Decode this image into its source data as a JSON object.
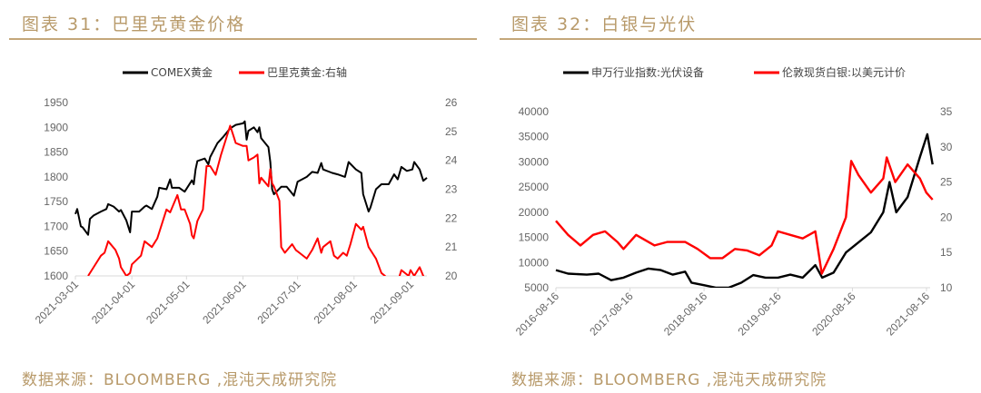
{
  "left": {
    "title": "图表 31：巴里克黄金价格",
    "source": "数据来源：BLOOMBERG ,混沌天成研究院"
  },
  "right": {
    "title": "图表 32：白银与光伏",
    "source": "数据来源：BLOOMBERG ,混沌天成研究院"
  },
  "chart_data": [
    {
      "type": "line",
      "title": "巴里克黄金价格",
      "xlim": [
        "2021-03-01",
        "2021-09-10"
      ],
      "x_ticks": [
        "2021-03-01",
        "2021-04-01",
        "2021-05-01",
        "2021-06-01",
        "2021-07-01",
        "2021-08-01",
        "2021-09-01"
      ],
      "ylim": [
        1600,
        1950
      ],
      "y_ticks": [
        "1600",
        "1650",
        "1700",
        "1750",
        "1800",
        "1850",
        "1900",
        "1950"
      ],
      "y2lim": [
        20,
        26
      ],
      "y2_ticks": [
        "20",
        "21",
        "22",
        "23",
        "24",
        "25",
        "26"
      ],
      "legend": "top",
      "series": [
        {
          "name": "COMEX黄金",
          "axis": "left",
          "color": "#000000",
          "points": [
            [
              "2021-03-01",
              1725
            ],
            [
              "2021-03-02",
              1735
            ],
            [
              "2021-03-04",
              1700
            ],
            [
              "2021-03-05",
              1698
            ],
            [
              "2021-03-08",
              1683
            ],
            [
              "2021-03-09",
              1715
            ],
            [
              "2021-03-11",
              1722
            ],
            [
              "2021-03-15",
              1730
            ],
            [
              "2021-03-18",
              1735
            ],
            [
              "2021-03-19",
              1745
            ],
            [
              "2021-03-22",
              1740
            ],
            [
              "2021-03-25",
              1730
            ],
            [
              "2021-03-26",
              1733
            ],
            [
              "2021-03-29",
              1712
            ],
            [
              "2021-03-31",
              1688
            ],
            [
              "2021-04-01",
              1730
            ],
            [
              "2021-04-05",
              1730
            ],
            [
              "2021-04-08",
              1740
            ],
            [
              "2021-04-09",
              1742
            ],
            [
              "2021-04-12",
              1735
            ],
            [
              "2021-04-15",
              1760
            ],
            [
              "2021-04-16",
              1778
            ],
            [
              "2021-04-20",
              1775
            ],
            [
              "2021-04-22",
              1795
            ],
            [
              "2021-04-23",
              1778
            ],
            [
              "2021-04-27",
              1778
            ],
            [
              "2021-04-30",
              1770
            ],
            [
              "2021-05-04",
              1793
            ],
            [
              "2021-05-05",
              1785
            ],
            [
              "2021-05-06",
              1815
            ],
            [
              "2021-05-07",
              1832
            ],
            [
              "2021-05-11",
              1837
            ],
            [
              "2021-05-13",
              1825
            ],
            [
              "2021-05-14",
              1840
            ],
            [
              "2021-05-18",
              1868
            ],
            [
              "2021-05-21",
              1880
            ],
            [
              "2021-05-25",
              1898
            ],
            [
              "2021-05-28",
              1905
            ],
            [
              "2021-06-01",
              1908
            ],
            [
              "2021-06-02",
              1912
            ],
            [
              "2021-06-03",
              1875
            ],
            [
              "2021-06-04",
              1893
            ],
            [
              "2021-06-07",
              1900
            ],
            [
              "2021-06-09",
              1890
            ],
            [
              "2021-06-10",
              1900
            ],
            [
              "2021-06-11",
              1878
            ],
            [
              "2021-06-15",
              1860
            ],
            [
              "2021-06-16",
              1830
            ],
            [
              "2021-06-17",
              1775
            ],
            [
              "2021-06-18",
              1765
            ],
            [
              "2021-06-22",
              1780
            ],
            [
              "2021-06-25",
              1780
            ],
            [
              "2021-06-29",
              1762
            ],
            [
              "2021-07-01",
              1790
            ],
            [
              "2021-07-06",
              1800
            ],
            [
              "2021-07-09",
              1810
            ],
            [
              "2021-07-12",
              1808
            ],
            [
              "2021-07-14",
              1828
            ],
            [
              "2021-07-15",
              1815
            ],
            [
              "2021-07-20",
              1808
            ],
            [
              "2021-07-23",
              1805
            ],
            [
              "2021-07-27",
              1800
            ],
            [
              "2021-07-29",
              1830
            ],
            [
              "2021-08-02",
              1815
            ],
            [
              "2021-08-05",
              1808
            ],
            [
              "2021-08-06",
              1765
            ],
            [
              "2021-08-09",
              1730
            ],
            [
              "2021-08-10",
              1738
            ],
            [
              "2021-08-13",
              1775
            ],
            [
              "2021-08-16",
              1785
            ],
            [
              "2021-08-20",
              1785
            ],
            [
              "2021-08-23",
              1805
            ],
            [
              "2021-08-25",
              1795
            ],
            [
              "2021-08-27",
              1820
            ],
            [
              "2021-08-30",
              1812
            ],
            [
              "2021-09-02",
              1815
            ],
            [
              "2021-09-03",
              1830
            ],
            [
              "2021-09-06",
              1815
            ],
            [
              "2021-09-08",
              1792
            ],
            [
              "2021-09-10",
              1798
            ]
          ]
        },
        {
          "name": "巴里克黄金:右轴",
          "axis": "right",
          "color": "#ff0000",
          "points": [
            [
              "2021-03-08",
              20.0
            ],
            [
              "2021-03-11",
              20.3
            ],
            [
              "2021-03-15",
              20.7
            ],
            [
              "2021-03-17",
              20.8
            ],
            [
              "2021-03-19",
              21.2
            ],
            [
              "2021-03-23",
              20.9
            ],
            [
              "2021-03-25",
              20.6
            ],
            [
              "2021-03-26",
              20.3
            ],
            [
              "2021-03-29",
              20.0
            ],
            [
              "2021-03-31",
              20.1
            ],
            [
              "2021-04-01",
              20.4
            ],
            [
              "2021-04-06",
              20.7
            ],
            [
              "2021-04-08",
              21.2
            ],
            [
              "2021-04-12",
              21.0
            ],
            [
              "2021-04-15",
              21.3
            ],
            [
              "2021-04-20",
              22.3
            ],
            [
              "2021-04-22",
              22.2
            ],
            [
              "2021-04-26",
              22.8
            ],
            [
              "2021-04-28",
              22.3
            ],
            [
              "2021-04-30",
              22.3
            ],
            [
              "2021-05-03",
              21.8
            ],
            [
              "2021-05-04",
              21.4
            ],
            [
              "2021-05-05",
              21.3
            ],
            [
              "2021-05-07",
              21.9
            ],
            [
              "2021-05-10",
              22.3
            ],
            [
              "2021-05-12",
              23.8
            ],
            [
              "2021-05-14",
              23.8
            ],
            [
              "2021-05-17",
              23.5
            ],
            [
              "2021-05-20",
              24.2
            ],
            [
              "2021-05-25",
              25.2
            ],
            [
              "2021-05-27",
              24.8
            ],
            [
              "2021-05-28",
              24.6
            ],
            [
              "2021-06-01",
              24.5
            ],
            [
              "2021-06-03",
              24.5
            ],
            [
              "2021-06-04",
              24.0
            ],
            [
              "2021-06-07",
              24.1
            ],
            [
              "2021-06-09",
              24.2
            ],
            [
              "2021-06-10",
              23.2
            ],
            [
              "2021-06-11",
              23.4
            ],
            [
              "2021-06-15",
              23.1
            ],
            [
              "2021-06-16",
              23.7
            ],
            [
              "2021-06-17",
              23.2
            ],
            [
              "2021-06-18",
              23.1
            ],
            [
              "2021-06-21",
              22.6
            ],
            [
              "2021-06-22",
              21.0
            ],
            [
              "2021-06-24",
              20.8
            ],
            [
              "2021-06-28",
              21.1
            ],
            [
              "2021-06-30",
              20.9
            ],
            [
              "2021-07-02",
              20.8
            ],
            [
              "2021-07-06",
              20.6
            ],
            [
              "2021-07-09",
              20.9
            ],
            [
              "2021-07-12",
              21.3
            ],
            [
              "2021-07-14",
              20.8
            ],
            [
              "2021-07-15",
              21.0
            ],
            [
              "2021-07-19",
              21.2
            ],
            [
              "2021-07-21",
              20.7
            ],
            [
              "2021-07-23",
              20.6
            ],
            [
              "2021-07-26",
              20.8
            ],
            [
              "2021-07-28",
              20.7
            ],
            [
              "2021-07-30",
              21.1
            ],
            [
              "2021-08-02",
              21.8
            ],
            [
              "2021-08-05",
              21.6
            ],
            [
              "2021-08-06",
              21.7
            ],
            [
              "2021-08-09",
              21.0
            ],
            [
              "2021-08-11",
              20.8
            ],
            [
              "2021-08-13",
              20.6
            ],
            [
              "2021-08-16",
              20.1
            ],
            [
              "2021-08-18",
              20.0
            ],
            [
              "2021-08-20",
              19.8
            ],
            [
              "2021-08-25",
              19.8
            ],
            [
              "2021-08-27",
              20.2
            ],
            [
              "2021-08-31",
              20.0
            ],
            [
              "2021-09-01",
              20.2
            ],
            [
              "2021-09-03",
              20.0
            ],
            [
              "2021-09-06",
              20.3
            ],
            [
              "2021-09-08",
              20.0
            ],
            [
              "2021-09-10",
              19.8
            ]
          ]
        }
      ]
    },
    {
      "type": "line",
      "title": "白银与光伏",
      "xlim": [
        "2016-08-16",
        "2021-09-20"
      ],
      "x_ticks": [
        "2016-08-16",
        "2017-08-16",
        "2018-08-16",
        "2019-08-16",
        "2020-08-16",
        "2021-08-16"
      ],
      "ylim": [
        5000,
        40000
      ],
      "y_ticks": [
        "5000",
        "10000",
        "15000",
        "20000",
        "25000",
        "30000",
        "35000",
        "40000"
      ],
      "y2lim": [
        10,
        35
      ],
      "y2_ticks": [
        "10",
        "15",
        "20",
        "25",
        "30",
        "35"
      ],
      "legend": "top",
      "series": [
        {
          "name": "申万行业指数:光伏设备",
          "axis": "left",
          "color": "#000000",
          "points": [
            [
              "2016-08-16",
              8500
            ],
            [
              "2016-10-15",
              7800
            ],
            [
              "2017-01-15",
              7600
            ],
            [
              "2017-03-15",
              7800
            ],
            [
              "2017-05-15",
              6500
            ],
            [
              "2017-07-15",
              7000
            ],
            [
              "2017-09-15",
              8000
            ],
            [
              "2017-11-15",
              8800
            ],
            [
              "2018-01-15",
              8500
            ],
            [
              "2018-03-15",
              7600
            ],
            [
              "2018-05-15",
              8200
            ],
            [
              "2018-06-15",
              6000
            ],
            [
              "2018-08-15",
              5500
            ],
            [
              "2018-10-15",
              5000
            ],
            [
              "2018-12-15",
              5000
            ],
            [
              "2019-02-15",
              6000
            ],
            [
              "2019-04-15",
              7500
            ],
            [
              "2019-06-15",
              7000
            ],
            [
              "2019-08-15",
              7000
            ],
            [
              "2019-10-15",
              7600
            ],
            [
              "2019-12-15",
              7000
            ],
            [
              "2020-02-15",
              9500
            ],
            [
              "2020-03-20",
              7000
            ],
            [
              "2020-05-15",
              8000
            ],
            [
              "2020-07-15",
              12000
            ],
            [
              "2020-09-15",
              14000
            ],
            [
              "2020-11-15",
              16000
            ],
            [
              "2021-01-15",
              20000
            ],
            [
              "2021-02-15",
              26000
            ],
            [
              "2021-03-20",
              20000
            ],
            [
              "2021-05-15",
              23000
            ],
            [
              "2021-07-15",
              31000
            ],
            [
              "2021-08-20",
              35500
            ],
            [
              "2021-09-15",
              29500
            ]
          ]
        },
        {
          "name": "伦敦现货白银:以美元计价",
          "axis": "right",
          "color": "#ff0000",
          "points": [
            [
              "2016-08-16",
              19.5
            ],
            [
              "2016-10-15",
              17.5
            ],
            [
              "2016-12-15",
              16
            ],
            [
              "2017-02-15",
              17.5
            ],
            [
              "2017-04-15",
              18
            ],
            [
              "2017-06-15",
              16.5
            ],
            [
              "2017-07-15",
              15.5
            ],
            [
              "2017-09-15",
              17.5
            ],
            [
              "2017-12-15",
              16
            ],
            [
              "2018-02-15",
              16.5
            ],
            [
              "2018-05-15",
              16.5
            ],
            [
              "2018-07-15",
              15.5
            ],
            [
              "2018-09-15",
              14.2
            ],
            [
              "2018-11-15",
              14.2
            ],
            [
              "2019-01-15",
              15.5
            ],
            [
              "2019-03-15",
              15.3
            ],
            [
              "2019-05-15",
              14.6
            ],
            [
              "2019-07-15",
              16
            ],
            [
              "2019-08-15",
              18
            ],
            [
              "2019-10-15",
              17.5
            ],
            [
              "2019-12-15",
              17
            ],
            [
              "2020-02-15",
              18
            ],
            [
              "2020-03-18",
              12
            ],
            [
              "2020-05-15",
              15.5
            ],
            [
              "2020-07-15",
              20
            ],
            [
              "2020-08-10",
              28
            ],
            [
              "2020-09-15",
              26
            ],
            [
              "2020-11-15",
              23.5
            ],
            [
              "2021-01-15",
              25.5
            ],
            [
              "2021-02-01",
              28.5
            ],
            [
              "2021-03-15",
              25
            ],
            [
              "2021-05-15",
              27.5
            ],
            [
              "2021-07-15",
              25.5
            ],
            [
              "2021-08-15",
              23.5
            ],
            [
              "2021-09-15",
              22.5
            ]
          ]
        }
      ]
    }
  ]
}
